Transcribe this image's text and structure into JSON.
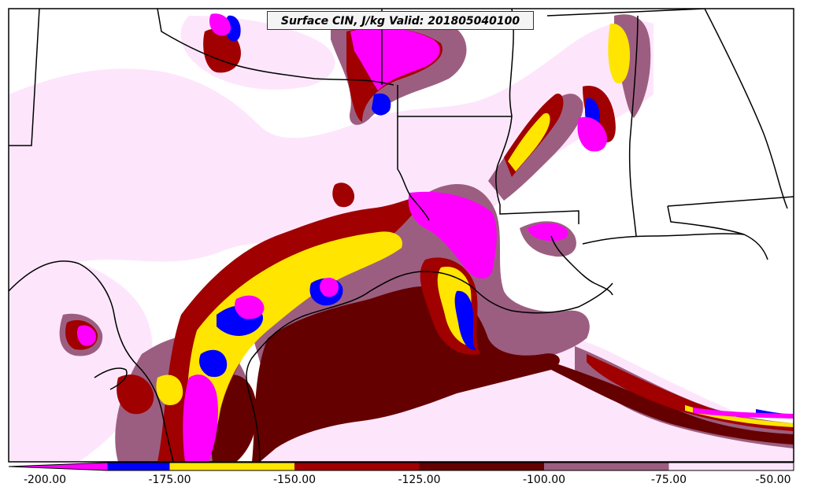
{
  "title": "Surface CIN, J/kg Valid: 201805040100",
  "colorbar": {
    "ticks": [
      "-200.00",
      "-175.00",
      "-150.00",
      "-125.00",
      "-100.00",
      "-75.00",
      "-50.00"
    ],
    "bins": [
      {
        "from": -200,
        "to": -187.5,
        "color": "#ff00ff"
      },
      {
        "from": -187.5,
        "to": -175,
        "color": "#0000ff"
      },
      {
        "from": -175,
        "to": -150,
        "color": "#ffe500"
      },
      {
        "from": -150,
        "to": -125,
        "color": "#a00000"
      },
      {
        "from": -125,
        "to": -100,
        "color": "#650000"
      },
      {
        "from": -100,
        "to": -75,
        "color": "#9c5e80"
      },
      {
        "from": -75,
        "to": -50,
        "color": "#fde6fb"
      }
    ]
  },
  "colors": {
    "magenta": "#ff00ff",
    "blue": "#0000ff",
    "yellow": "#ffe500",
    "red": "#a00000",
    "darkred": "#650000",
    "mauve": "#9c5e80",
    "pale": "#fde6fb"
  }
}
